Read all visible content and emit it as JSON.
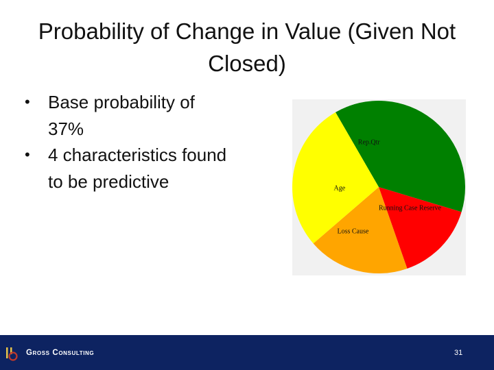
{
  "slide": {
    "title": "Probability of Change in Value (Given Not Closed)",
    "bullets": [
      {
        "text": "Base probability of 37%"
      },
      {
        "text": "4 characteristics found to be predictive"
      }
    ]
  },
  "chart_data": {
    "type": "pie",
    "categories": [
      "Rep.Qtr",
      "Running Case Reserve",
      "Loss Cause",
      "Age"
    ],
    "values": [
      0.38,
      0.15,
      0.19,
      0.28
    ],
    "colors": [
      "#008000",
      "#ff0000",
      "#ffa500",
      "#ffff00"
    ],
    "title": "",
    "legend": "none"
  },
  "footer": {
    "company": "Gross Consulting",
    "page_number": "31",
    "colors": {
      "bar": "#0d2361",
      "logo": "#c0392b"
    }
  }
}
